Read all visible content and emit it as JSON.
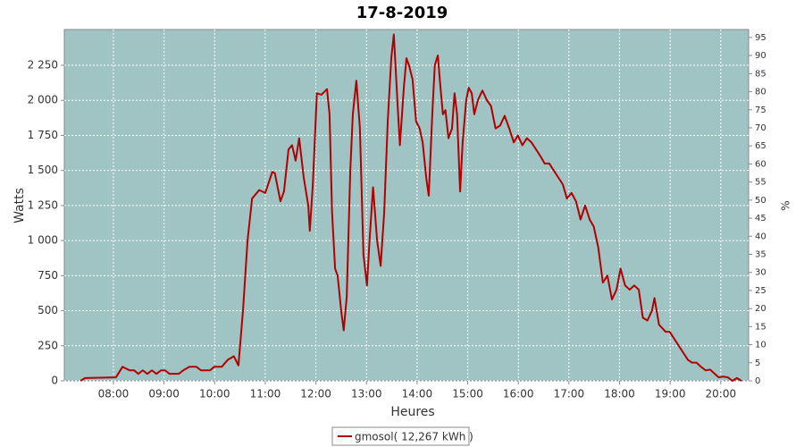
{
  "chart_data": {
    "type": "line",
    "title": "17-8-2019",
    "xlabel": "Heures",
    "ylabel": "Watts",
    "y2label": "%",
    "x": [
      7.35,
      7.44,
      8.05,
      8.18,
      8.32,
      8.41,
      8.49,
      8.58,
      8.67,
      8.76,
      8.85,
      8.94,
      9.02,
      9.11,
      9.29,
      9.38,
      9.5,
      9.64,
      9.73,
      9.91,
      9.99,
      10.14,
      10.26,
      10.38,
      10.47,
      10.56,
      10.65,
      10.74,
      10.88,
      11.0,
      11.14,
      11.19,
      11.3,
      11.37,
      11.46,
      11.53,
      11.6,
      11.67,
      11.76,
      11.85,
      11.88,
      11.94,
      12.02,
      12.11,
      12.22,
      12.27,
      12.32,
      12.38,
      12.43,
      12.5,
      12.55,
      12.61,
      12.68,
      12.73,
      12.8,
      12.87,
      12.94,
      13.01,
      13.06,
      13.13,
      13.21,
      13.28,
      13.35,
      13.42,
      13.49,
      13.54,
      13.61,
      13.66,
      13.74,
      13.79,
      13.84,
      13.91,
      13.98,
      14.05,
      14.11,
      14.18,
      14.23,
      14.3,
      14.35,
      14.41,
      14.46,
      14.51,
      14.56,
      14.62,
      14.69,
      14.74,
      14.79,
      14.85,
      14.9,
      14.97,
      15.02,
      15.08,
      15.13,
      15.2,
      15.29,
      15.38,
      15.46,
      15.55,
      15.64,
      15.73,
      15.82,
      15.91,
      15.99,
      16.08,
      16.17,
      16.26,
      16.35,
      16.44,
      16.52,
      16.61,
      16.7,
      16.79,
      16.88,
      16.96,
      17.05,
      17.14,
      17.23,
      17.32,
      17.41,
      17.49,
      17.58,
      17.67,
      17.76,
      17.85,
      17.94,
      18.02,
      18.11,
      18.2,
      18.29,
      18.38,
      18.46,
      18.55,
      18.64,
      18.69,
      18.78,
      18.91,
      18.99,
      19.08,
      19.17,
      19.26,
      19.35,
      19.43,
      19.52,
      19.61,
      19.7,
      19.79,
      19.88,
      19.96,
      20.05,
      20.14,
      20.23,
      20.32,
      20.41
    ],
    "series": [
      {
        "name": "gmosol( 12,267 kWh )",
        "color": "#b00000",
        "values": [
          0,
          20,
          25,
          100,
          75,
          75,
          50,
          75,
          50,
          75,
          50,
          75,
          75,
          50,
          50,
          75,
          100,
          100,
          75,
          75,
          100,
          100,
          150,
          175,
          110,
          500,
          1000,
          1300,
          1360,
          1340,
          1490,
          1480,
          1280,
          1350,
          1650,
          1680,
          1570,
          1730,
          1450,
          1250,
          1070,
          1400,
          2050,
          2040,
          2080,
          1900,
          1200,
          800,
          750,
          500,
          360,
          600,
          1500,
          1900,
          2140,
          1800,
          900,
          680,
          1000,
          1380,
          1000,
          820,
          1200,
          1850,
          2300,
          2470,
          2000,
          1680,
          2100,
          2300,
          2250,
          2150,
          1850,
          1800,
          1700,
          1450,
          1320,
          1900,
          2250,
          2320,
          2100,
          1900,
          1930,
          1730,
          1800,
          2050,
          1900,
          1350,
          1700,
          2000,
          2090,
          2050,
          1900,
          2000,
          2070,
          2000,
          1960,
          1800,
          1820,
          1890,
          1800,
          1700,
          1750,
          1680,
          1730,
          1700,
          1650,
          1600,
          1550,
          1550,
          1500,
          1450,
          1400,
          1300,
          1340,
          1280,
          1150,
          1250,
          1150,
          1100,
          950,
          700,
          750,
          580,
          650,
          800,
          680,
          650,
          680,
          650,
          450,
          430,
          500,
          590,
          400,
          350,
          350,
          300,
          250,
          200,
          150,
          130,
          130,
          100,
          75,
          80,
          50,
          25,
          30,
          25,
          0,
          20,
          0
        ]
      }
    ],
    "xlim": [
      7.03,
      20.55
    ],
    "xticks": [
      {
        "value": 8,
        "label": "08:00"
      },
      {
        "value": 9,
        "label": "09:00"
      },
      {
        "value": 10,
        "label": "10:00"
      },
      {
        "value": 11,
        "label": "11:00"
      },
      {
        "value": 12,
        "label": "12:00"
      },
      {
        "value": 13,
        "label": "13:00"
      },
      {
        "value": 14,
        "label": "14:00"
      },
      {
        "value": 15,
        "label": "15:00"
      },
      {
        "value": 16,
        "label": "16:00"
      },
      {
        "value": 17,
        "label": "17:00"
      },
      {
        "value": 18,
        "label": "18:00"
      },
      {
        "value": 19,
        "label": "19:00"
      },
      {
        "value": 20,
        "label": "20:00"
      }
    ],
    "ylim": [
      0,
      2505
    ],
    "yticks": [
      0,
      250,
      500,
      750,
      {
        "value": 1000,
        "label": "1 000"
      },
      {
        "value": 1250,
        "label": "1 250"
      },
      {
        "value": 1500,
        "label": "1 500"
      },
      {
        "value": 1750,
        "label": "1 750"
      },
      {
        "value": 2000,
        "label": "2 000"
      },
      {
        "value": 2250,
        "label": "2 250"
      }
    ],
    "y2lim": [
      0,
      97.2
    ],
    "y2ticks": [
      0,
      5,
      10,
      15,
      20,
      25,
      30,
      35,
      40,
      45,
      50,
      55,
      60,
      65,
      70,
      75,
      80,
      85,
      90,
      95
    ],
    "grid": true
  }
}
